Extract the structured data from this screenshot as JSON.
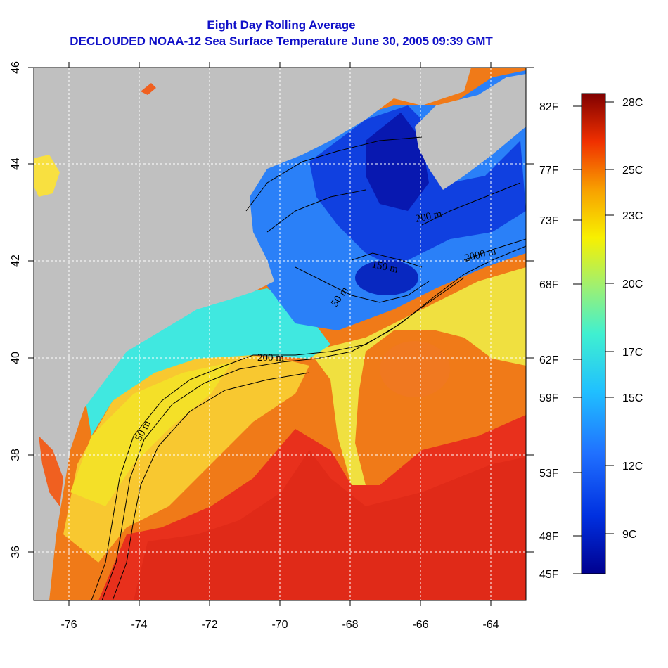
{
  "title_line1": "Eight Day Rolling Average",
  "title_line2": "DECLOUDED NOAA-12 Sea Surface Temperature June 30, 2005 09:39 GMT",
  "map": {
    "longitude_ticks": [
      "-76",
      "-74",
      "-72",
      "-70",
      "-68",
      "-66",
      "-64"
    ],
    "latitude_ticks": [
      "36",
      "38",
      "40",
      "42",
      "44",
      "46"
    ],
    "lon_range": [
      -77,
      -63
    ],
    "lat_range": [
      35,
      46
    ],
    "contour_labels": [
      "50 m",
      "200 m",
      "2000 m",
      "50 m",
      "150 m",
      "200 m"
    ],
    "colors": {
      "land": "#c0c0c0",
      "cold": "#0a1fc8",
      "cool": "#2aa0ff",
      "mild": "#40f0e0",
      "warm_yellow": "#f4e020",
      "orange": "#f89a1c",
      "hot": "#e8281a",
      "contour": "#000000",
      "grid": "#ffffff"
    }
  },
  "fahrenheit_scale": [
    "82F",
    "77F",
    "73F",
    "68F",
    "62F",
    "59F",
    "53F",
    "48F",
    "45F"
  ],
  "celsius_scale": [
    "28C",
    "25C",
    "23C",
    "20C",
    "17C",
    "15C",
    "12C",
    "9C"
  ]
}
